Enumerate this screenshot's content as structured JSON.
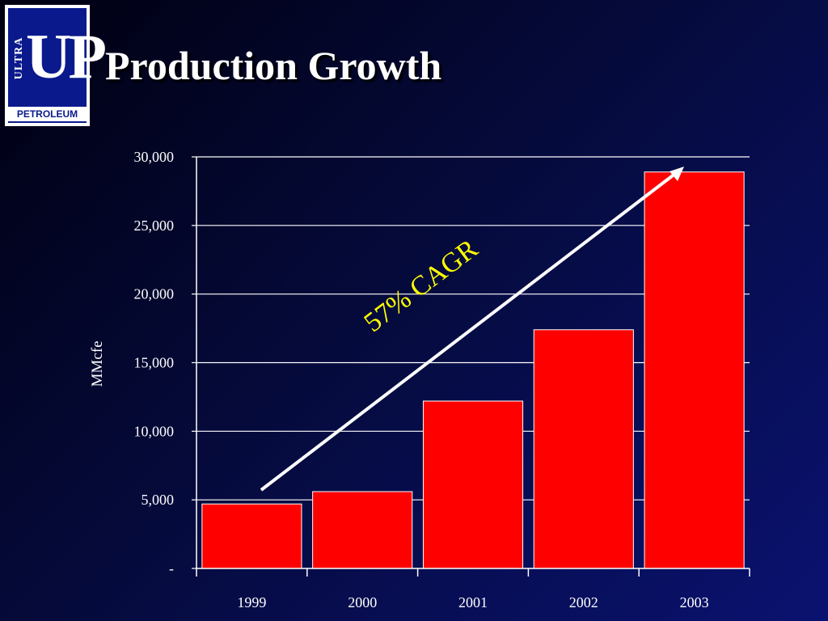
{
  "slide": {
    "title": "Production Growth"
  },
  "logo": {
    "mark": "UP",
    "top_word": "ULTRA",
    "bottom_word": "PETROLEUM"
  },
  "colors": {
    "bar": "#ff0000",
    "axis": "#ffffff",
    "annotation": "#ffff00",
    "background": "#050a3a"
  },
  "chart_data": {
    "type": "bar",
    "title": "",
    "xlabel": "",
    "ylabel": "MMcfe",
    "categories": [
      "1999",
      "2000",
      "2001",
      "2002",
      "2003"
    ],
    "values": [
      4700,
      5600,
      12200,
      17400,
      28900
    ],
    "ylim": [
      0,
      30000
    ],
    "yticks": [
      0,
      5000,
      10000,
      15000,
      20000,
      25000,
      30000
    ],
    "ytick_labels": [
      "-",
      "5,000",
      "10,000",
      "15,000",
      "20,000",
      "25,000",
      "30,000"
    ],
    "grid": true,
    "annotation": {
      "text": "57% CAGR"
    }
  }
}
